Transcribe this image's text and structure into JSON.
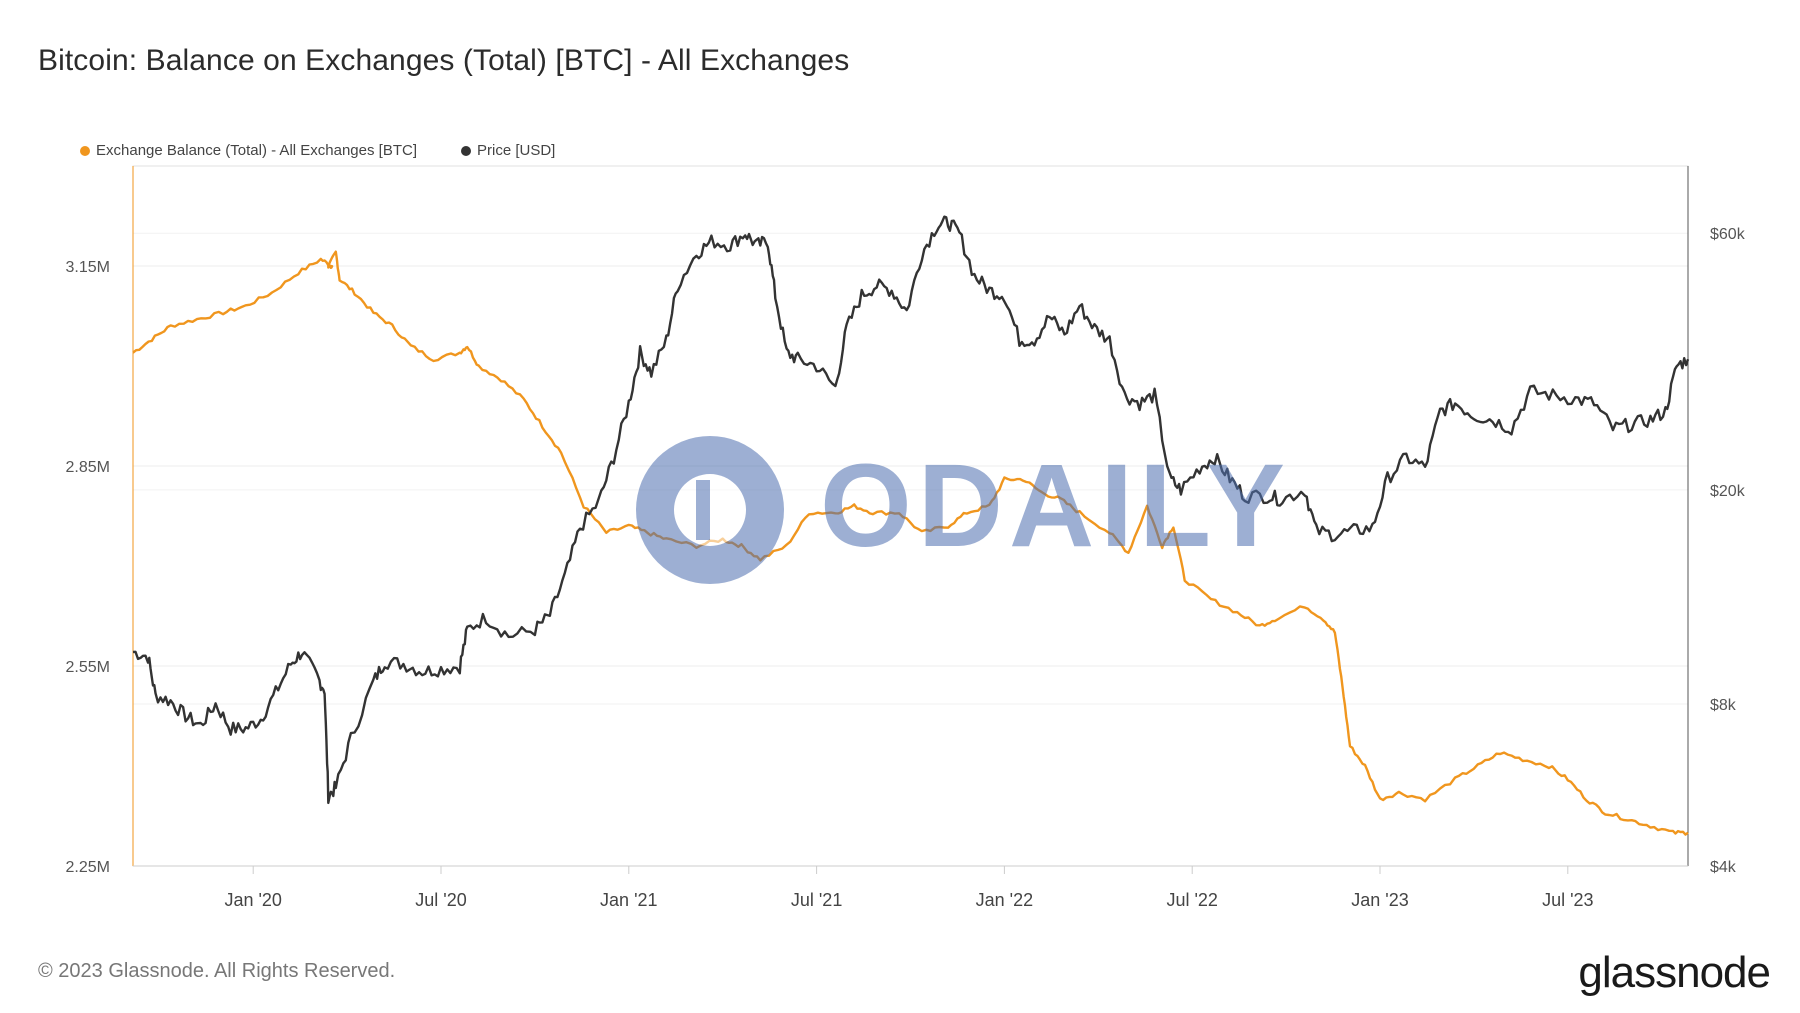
{
  "title": "Bitcoin: Balance on Exchanges (Total) [BTC] - All Exchanges",
  "legend": [
    {
      "label": "Exchange Balance (Total) - All Exchanges [BTC]",
      "color": "#f0961e"
    },
    {
      "label": "Price [USD]",
      "color": "#333333"
    }
  ],
  "footer": "© 2023 Glassnode. All Rights Reserved.",
  "brand": "glassnode",
  "watermark": "ODAILY",
  "chart_data": {
    "type": "line",
    "x_ticks": [
      {
        "label": "Jan '20",
        "t": 2020.0
      },
      {
        "label": "Jul '20",
        "t": 2020.5
      },
      {
        "label": "Jan '21",
        "t": 2021.0
      },
      {
        "label": "Jul '21",
        "t": 2021.5
      },
      {
        "label": "Jan '22",
        "t": 2022.0
      },
      {
        "label": "Jul '22",
        "t": 2022.5
      },
      {
        "label": "Jan '23",
        "t": 2023.0
      },
      {
        "label": "Jul '23",
        "t": 2023.5
      }
    ],
    "x_range": [
      2019.68,
      2023.82
    ],
    "left_axis": {
      "min": 2.25,
      "max": 3.3,
      "ticks": [
        {
          "label": "2.25M",
          "v": 2.25
        },
        {
          "label": "2.55M",
          "v": 2.55
        },
        {
          "label": "2.85M",
          "v": 2.85
        },
        {
          "label": "3.15M",
          "v": 3.15
        }
      ]
    },
    "right_axis": {
      "scale": "log",
      "min": 4000,
      "max": 80000,
      "ticks": [
        {
          "label": "$4k",
          "v": 4000
        },
        {
          "label": "$8k",
          "v": 8000
        },
        {
          "label": "$20k",
          "v": 20000
        },
        {
          "label": "$60k",
          "v": 60000
        }
      ]
    },
    "series": [
      {
        "name": "Exchange Balance (Total) - All Exchanges [BTC]",
        "axis": "left",
        "color": "#f0961e",
        "points": [
          [
            2019.68,
            3.02
          ],
          [
            2019.73,
            3.04
          ],
          [
            2019.78,
            3.06
          ],
          [
            2019.85,
            3.07
          ],
          [
            2019.92,
            3.08
          ],
          [
            2019.98,
            3.09
          ],
          [
            2020.05,
            3.11
          ],
          [
            2020.12,
            3.14
          ],
          [
            2020.18,
            3.16
          ],
          [
            2020.21,
            3.15
          ],
          [
            2020.2,
            3.15
          ],
          [
            2020.2,
            3.15
          ],
          [
            2020.2,
            3.15
          ],
          [
            2020.22,
            3.17
          ],
          [
            2020.23,
            3.13
          ],
          [
            2020.27,
            3.11
          ],
          [
            2020.32,
            3.08
          ],
          [
            2020.37,
            3.06
          ],
          [
            2020.42,
            3.03
          ],
          [
            2020.48,
            3.01
          ],
          [
            2020.55,
            3.02
          ],
          [
            2020.57,
            3.03
          ],
          [
            2020.6,
            3.0
          ],
          [
            2020.66,
            2.98
          ],
          [
            2020.72,
            2.95
          ],
          [
            2020.77,
            2.91
          ],
          [
            2020.82,
            2.87
          ],
          [
            2020.88,
            2.79
          ],
          [
            2020.94,
            2.75
          ],
          [
            2021.0,
            2.76
          ],
          [
            2021.05,
            2.75
          ],
          [
            2021.1,
            2.74
          ],
          [
            2021.18,
            2.73
          ],
          [
            2021.25,
            2.74
          ],
          [
            2021.3,
            2.73
          ],
          [
            2021.35,
            2.71
          ],
          [
            2021.42,
            2.73
          ],
          [
            2021.48,
            2.78
          ],
          [
            2021.55,
            2.78
          ],
          [
            2021.6,
            2.79
          ],
          [
            2021.65,
            2.78
          ],
          [
            2021.72,
            2.78
          ],
          [
            2021.78,
            2.75
          ],
          [
            2021.85,
            2.76
          ],
          [
            2021.9,
            2.78
          ],
          [
            2021.96,
            2.79
          ],
          [
            2022.0,
            2.83
          ],
          [
            2022.05,
            2.83
          ],
          [
            2022.1,
            2.81
          ],
          [
            2022.15,
            2.8
          ],
          [
            2022.2,
            2.78
          ],
          [
            2022.28,
            2.75
          ],
          [
            2022.33,
            2.72
          ],
          [
            2022.38,
            2.79
          ],
          [
            2022.42,
            2.73
          ],
          [
            2022.45,
            2.76
          ],
          [
            2022.48,
            2.68
          ],
          [
            2022.55,
            2.65
          ],
          [
            2022.62,
            2.63
          ],
          [
            2022.68,
            2.61
          ],
          [
            2022.72,
            2.62
          ],
          [
            2022.8,
            2.64
          ],
          [
            2022.85,
            2.62
          ],
          [
            2022.88,
            2.6
          ],
          [
            2022.9,
            2.52
          ],
          [
            2022.92,
            2.43
          ],
          [
            2022.96,
            2.4
          ],
          [
            2023.0,
            2.35
          ],
          [
            2023.05,
            2.36
          ],
          [
            2023.12,
            2.35
          ],
          [
            2023.2,
            2.38
          ],
          [
            2023.26,
            2.4
          ],
          [
            2023.32,
            2.42
          ],
          [
            2023.38,
            2.41
          ],
          [
            2023.45,
            2.4
          ],
          [
            2023.5,
            2.38
          ],
          [
            2023.55,
            2.35
          ],
          [
            2023.6,
            2.33
          ],
          [
            2023.66,
            2.32
          ],
          [
            2023.72,
            2.31
          ],
          [
            2023.78,
            2.3
          ],
          [
            2023.82,
            2.3
          ]
        ]
      },
      {
        "name": "Price [USD]",
        "axis": "right",
        "color": "#333333",
        "points": [
          [
            2019.68,
            10000
          ],
          [
            2019.72,
            9800
          ],
          [
            2019.74,
            8300
          ],
          [
            2019.78,
            8100
          ],
          [
            2019.82,
            7600
          ],
          [
            2019.86,
            7300
          ],
          [
            2019.9,
            8000
          ],
          [
            2019.94,
            7200
          ],
          [
            2019.98,
            7200
          ],
          [
            2020.02,
            7500
          ],
          [
            2020.06,
            8400
          ],
          [
            2020.1,
            9500
          ],
          [
            2020.13,
            10000
          ],
          [
            2020.17,
            9000
          ],
          [
            2020.19,
            8500
          ],
          [
            2020.2,
            5400
          ],
          [
            2020.22,
            5600
          ],
          [
            2020.26,
            6900
          ],
          [
            2020.32,
            8800
          ],
          [
            2020.35,
            9600
          ],
          [
            2020.4,
            9500
          ],
          [
            2020.45,
            9200
          ],
          [
            2020.5,
            9300
          ],
          [
            2020.55,
            9400
          ],
          [
            2020.57,
            11000
          ],
          [
            2020.62,
            11600
          ],
          [
            2020.68,
            10700
          ],
          [
            2020.75,
            11000
          ],
          [
            2020.79,
            11700
          ],
          [
            2020.83,
            13800
          ],
          [
            2020.87,
            17000
          ],
          [
            2020.92,
            19000
          ],
          [
            2020.96,
            23000
          ],
          [
            2021.0,
            29000
          ],
          [
            2021.03,
            36000
          ],
          [
            2021.06,
            33000
          ],
          [
            2021.1,
            38000
          ],
          [
            2021.13,
            48000
          ],
          [
            2021.18,
            55000
          ],
          [
            2021.22,
            58000
          ],
          [
            2021.27,
            57000
          ],
          [
            2021.31,
            60000
          ],
          [
            2021.34,
            57000
          ],
          [
            2021.37,
            58000
          ],
          [
            2021.39,
            46000
          ],
          [
            2021.42,
            36000
          ],
          [
            2021.45,
            35000
          ],
          [
            2021.5,
            34000
          ],
          [
            2021.55,
            31000
          ],
          [
            2021.58,
            40000
          ],
          [
            2021.62,
            46000
          ],
          [
            2021.66,
            48000
          ],
          [
            2021.7,
            47000
          ],
          [
            2021.74,
            43000
          ],
          [
            2021.78,
            55000
          ],
          [
            2021.82,
            62000
          ],
          [
            2021.85,
            63000
          ],
          [
            2021.88,
            60000
          ],
          [
            2021.92,
            50000
          ],
          [
            2021.96,
            47000
          ],
          [
            2022.0,
            46000
          ],
          [
            2022.04,
            38000
          ],
          [
            2022.08,
            38000
          ],
          [
            2022.12,
            42000
          ],
          [
            2022.16,
            39000
          ],
          [
            2022.2,
            44000
          ],
          [
            2022.24,
            40000
          ],
          [
            2022.28,
            38000
          ],
          [
            2022.32,
            30000
          ],
          [
            2022.36,
            29000
          ],
          [
            2022.4,
            30000
          ],
          [
            2022.44,
            21000
          ],
          [
            2022.47,
            20000
          ],
          [
            2022.52,
            22000
          ],
          [
            2022.56,
            23000
          ],
          [
            2022.6,
            21000
          ],
          [
            2022.64,
            19500
          ],
          [
            2022.7,
            19500
          ],
          [
            2022.74,
            19200
          ],
          [
            2022.8,
            20000
          ],
          [
            2022.83,
            16800
          ],
          [
            2022.88,
            16500
          ],
          [
            2022.93,
            16800
          ],
          [
            2022.98,
            17000
          ],
          [
            2023.02,
            21000
          ],
          [
            2023.07,
            23000
          ],
          [
            2023.12,
            22000
          ],
          [
            2023.16,
            28000
          ],
          [
            2023.2,
            29000
          ],
          [
            2023.25,
            27500
          ],
          [
            2023.3,
            27000
          ],
          [
            2023.35,
            26000
          ],
          [
            2023.4,
            30500
          ],
          [
            2023.46,
            30000
          ],
          [
            2023.52,
            29500
          ],
          [
            2023.57,
            29000
          ],
          [
            2023.62,
            26000
          ],
          [
            2023.67,
            26500
          ],
          [
            2023.72,
            27000
          ],
          [
            2023.76,
            28000
          ],
          [
            2023.79,
            34000
          ],
          [
            2023.82,
            35000
          ]
        ]
      }
    ]
  }
}
